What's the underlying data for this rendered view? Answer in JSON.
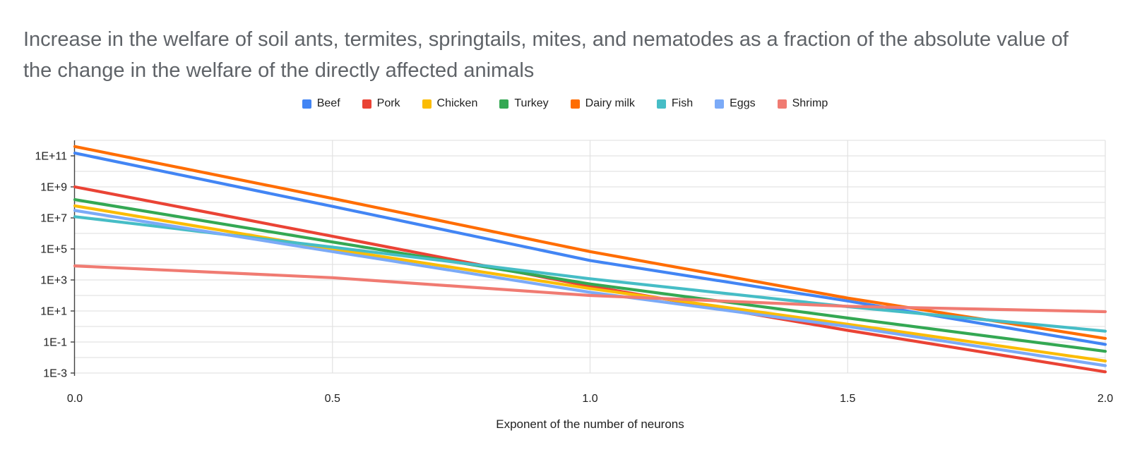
{
  "title": "Increase in the welfare of soil ants, termites, springtails, mites, and nematodes as a fraction of the absolute value of the change in the welfare of the directly affected animals",
  "legend": {
    "items": [
      {
        "label": "Beef",
        "color": "#4285F4"
      },
      {
        "label": "Pork",
        "color": "#EA4335"
      },
      {
        "label": "Chicken",
        "color": "#FBBC04"
      },
      {
        "label": "Turkey",
        "color": "#34A853"
      },
      {
        "label": "Dairy milk",
        "color": "#FF6D01"
      },
      {
        "label": "Fish",
        "color": "#46BDC6"
      },
      {
        "label": "Eggs",
        "color": "#7BAAF7"
      },
      {
        "label": "Shrimp",
        "color": "#F07B72"
      }
    ]
  },
  "x_axis": {
    "title": "Exponent of the number of neurons",
    "ticks": [
      {
        "label": "0.0",
        "value": 0.0
      },
      {
        "label": "0.5",
        "value": 0.5
      },
      {
        "label": "1.0",
        "value": 1.0
      },
      {
        "label": "1.5",
        "value": 1.5
      },
      {
        "label": "2.0",
        "value": 2.0
      }
    ]
  },
  "y_axis": {
    "ticks": [
      {
        "label": "1E+11",
        "value": 100000000000.0
      },
      {
        "label": "1E+9",
        "value": 1000000000.0
      },
      {
        "label": "1E+7",
        "value": 10000000.0
      },
      {
        "label": "1E+5",
        "value": 100000.0
      },
      {
        "label": "1E+3",
        "value": 1000.0
      },
      {
        "label": "1E+1",
        "value": 10.0
      },
      {
        "label": "1E-1",
        "value": 0.1
      },
      {
        "label": "1E-3",
        "value": 0.001
      }
    ]
  },
  "chart_data": {
    "type": "line",
    "title": "Increase in the welfare of soil ants, termites, springtails, mites, and nematodes as a fraction of the absolute value of the change in the welfare of the directly affected animals",
    "xlabel": "Exponent of the number of neurons",
    "ylabel": "",
    "x_scale": "linear",
    "y_scale": "log",
    "xlim": [
      0,
      2
    ],
    "ylim": [
      0.001,
      1000000000000.0
    ],
    "grid": true,
    "legend_position": "top",
    "x": [
      0,
      0.5,
      1.0,
      1.5,
      2.0
    ],
    "series": [
      {
        "name": "Beef",
        "color": "#4285F4",
        "values": [
          150000000000.0,
          55000000.0,
          18000.0,
          44,
          0.07
        ]
      },
      {
        "name": "Pork",
        "color": "#EA4335",
        "values": [
          1000000000.0,
          650000.0,
          400,
          0.56,
          0.0012
        ]
      },
      {
        "name": "Chicken",
        "color": "#FBBC04",
        "values": [
          60000000.0,
          100000.0,
          280,
          1.4,
          0.006
        ]
      },
      {
        "name": "Turkey",
        "color": "#34A853",
        "values": [
          150000000.0,
          280000.0,
          550,
          3.5,
          0.025
        ]
      },
      {
        "name": "Dairy milk",
        "color": "#FF6D01",
        "values": [
          400000000000.0,
          180000000.0,
          67000.0,
          68,
          0.17
        ]
      },
      {
        "name": "Fish",
        "color": "#46BDC6",
        "values": [
          12000000.0,
          130000.0,
          1200,
          19,
          0.5
        ]
      },
      {
        "name": "Eggs",
        "color": "#7BAAF7",
        "values": [
          30000000.0,
          67000.0,
          160,
          1.0,
          0.003
        ]
      },
      {
        "name": "Shrimp",
        "color": "#F07B72",
        "values": [
          8000.0,
          1400.0,
          100,
          20,
          9
        ]
      }
    ]
  }
}
